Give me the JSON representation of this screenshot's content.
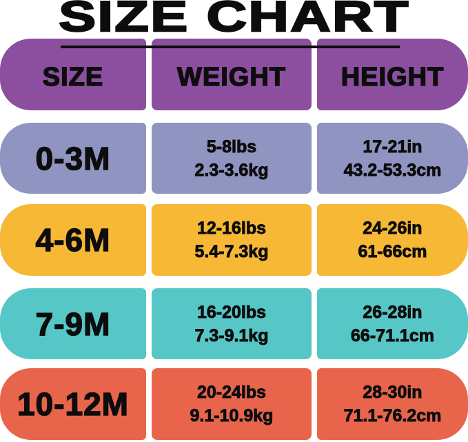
{
  "title": "SIZE CHART",
  "colors": {
    "background": "#ffffff",
    "text": "#0d0d0d",
    "header_band": "#8c4fa0",
    "row_0_3m": "#9094c1",
    "row_4_6m": "#f7b836",
    "row_7_9m": "#57c6c6",
    "row_10_12m": "#e8654c"
  },
  "chart_data": {
    "type": "table",
    "title": "SIZE CHART",
    "columns": [
      "SIZE",
      "WEIGHT",
      "HEIGHT"
    ],
    "rows": [
      {
        "size": "0-3M",
        "weight": [
          "5-8lbs",
          "2.3-3.6kg"
        ],
        "height": [
          "17-21in",
          "43.2-53.3cm"
        ],
        "row_color": "#9094c1"
      },
      {
        "size": "4-6M",
        "weight": [
          "12-16lbs",
          "5.4-7.3kg"
        ],
        "height": [
          "24-26in",
          "61-66cm"
        ],
        "row_color": "#f7b836"
      },
      {
        "size": "7-9M",
        "weight": [
          "16-20lbs",
          "7.3-9.1kg"
        ],
        "height": [
          "26-28in",
          "66-71.1cm"
        ],
        "row_color": "#57c6c6"
      },
      {
        "size": "10-12M",
        "weight": [
          "20-24lbs",
          "9.1-10.9kg"
        ],
        "height": [
          "28-30in",
          "71.1-76.2cm"
        ],
        "row_color": "#e8654c"
      }
    ],
    "layout": {
      "legend": false,
      "grid": false
    }
  }
}
